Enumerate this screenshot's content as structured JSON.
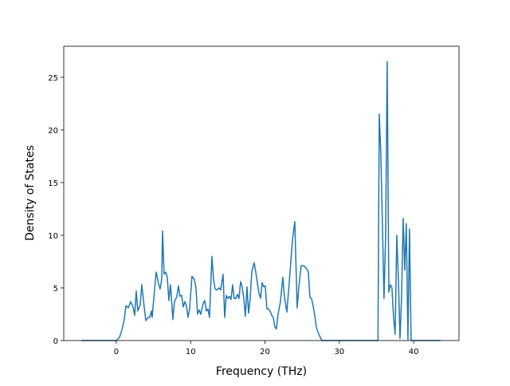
{
  "chart_data": {
    "type": "line",
    "xlabel": "Frequency (THz)",
    "ylabel": "Density of States",
    "x": [
      -4.7,
      0,
      0.43,
      0.75,
      1.07,
      1.29,
      1.61,
      1.93,
      2.25,
      2.47,
      2.68,
      2.89,
      3.22,
      3.43,
      3.75,
      3.97,
      4.29,
      4.5,
      4.72,
      4.82,
      5.14,
      5.36,
      5.68,
      5.89,
      6.11,
      6.22,
      6.43,
      6.65,
      6.86,
      7.07,
      7.29,
      7.61,
      7.82,
      8.15,
      8.36,
      8.57,
      8.79,
      9.0,
      9.22,
      9.43,
      9.65,
      9.86,
      10.18,
      10.5,
      10.72,
      10.93,
      11.15,
      11.36,
      11.68,
      11.9,
      12.11,
      12.33,
      12.54,
      12.86,
      13.08,
      13.29,
      13.5,
      13.83,
      14.04,
      14.36,
      14.58,
      14.79,
      15.0,
      15.22,
      15.43,
      15.65,
      15.86,
      16.08,
      16.29,
      16.51,
      16.72,
      16.93,
      17.15,
      17.36,
      17.58,
      17.79,
      18.01,
      18.22,
      18.54,
      18.76,
      18.97,
      19.19,
      19.4,
      19.61,
      19.83,
      20.04,
      20.26,
      20.47,
      20.69,
      20.9,
      21.11,
      21.33,
      21.54,
      21.76,
      22.08,
      22.4,
      22.61,
      22.94,
      23.15,
      23.47,
      23.69,
      24.01,
      24.33,
      24.54,
      24.87,
      25.19,
      25.4,
      25.62,
      25.83,
      26.05,
      26.26,
      26.47,
      26.69,
      26.9,
      27.12,
      27.44,
      27.65,
      35.2,
      35.37,
      35.58,
      35.8,
      36.01,
      36.23,
      36.44,
      36.66,
      36.87,
      37.08,
      37.3,
      37.51,
      37.73,
      37.94,
      38.16,
      38.37,
      38.59,
      38.8,
      39.01,
      39.23,
      39.44,
      39.66,
      43.62
    ],
    "series": [
      {
        "color": "#1f77b4",
        "values": [
          0,
          0,
          0.3,
          1,
          2,
          3.3,
          3.1,
          3.7,
          3.2,
          2.4,
          4.7,
          2.8,
          3.4,
          5.3,
          3.2,
          1.9,
          2.2,
          2.2,
          2.8,
          2.2,
          4.8,
          6.5,
          5.4,
          4.9,
          5.8,
          10.4,
          6.3,
          6.5,
          6,
          3.8,
          5.3,
          2,
          3.7,
          4.2,
          5.2,
          4.2,
          4.3,
          3.2,
          3.7,
          3.3,
          2.2,
          3,
          6.1,
          5.8,
          5,
          2.5,
          2.9,
          2.5,
          3.5,
          3.8,
          2.8,
          3,
          2.2,
          8,
          5.8,
          4.9,
          4.8,
          5,
          4.8,
          6.3,
          2.2,
          4.3,
          4,
          4.2,
          3.9,
          5.3,
          4,
          4,
          4.4,
          4,
          5.6,
          5.1,
          4,
          2.3,
          5.1,
          2.6,
          4,
          6.5,
          7.4,
          6.5,
          5.5,
          4.5,
          4,
          5.5,
          5.1,
          5.2,
          3,
          3,
          2.8,
          2.4,
          2.2,
          1.3,
          1.1,
          2.5,
          3.7,
          6,
          4.2,
          2.7,
          4.5,
          7.4,
          9.5,
          11.3,
          3.1,
          5,
          7.1,
          7.1,
          7,
          6.8,
          6.5,
          4.1,
          4,
          3.3,
          2.4,
          1.3,
          0.8,
          0.3,
          0,
          0,
          21.5,
          17.9,
          11,
          4,
          9.9,
          26.5,
          4.6,
          5.3,
          5,
          2.2,
          0.6,
          10,
          6,
          0.2,
          4,
          11.6,
          6.7,
          11.1,
          0.1,
          10.6,
          0,
          0
        ]
      }
    ],
    "xlim": [
      -7.07,
      46.1
    ],
    "ylim": [
      0,
      27.95
    ],
    "xticks": [
      0,
      10,
      20,
      30,
      40
    ],
    "yticks": [
      0,
      5,
      10,
      15,
      20,
      25
    ]
  }
}
